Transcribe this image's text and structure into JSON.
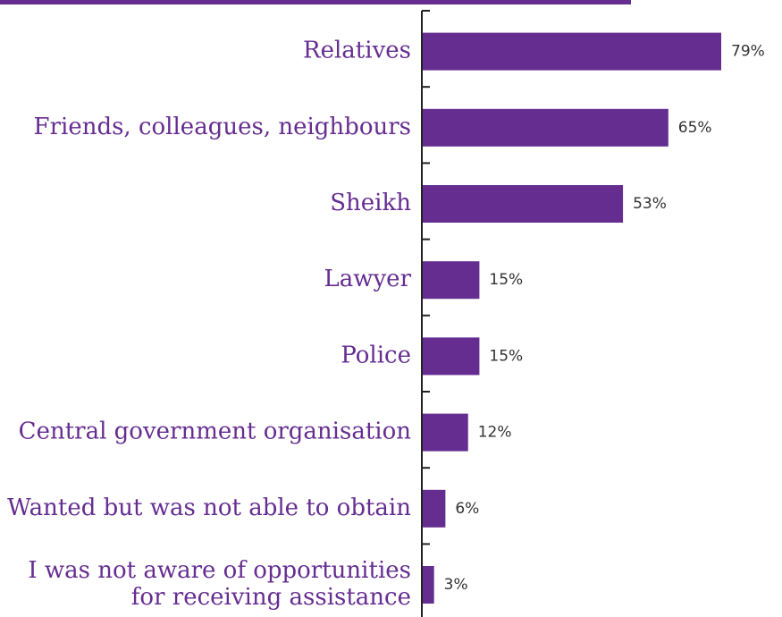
{
  "chart_data": {
    "type": "bar",
    "orientation": "horizontal",
    "title": "",
    "xlabel": "",
    "ylabel": "",
    "categories": [
      [
        "Relatives"
      ],
      [
        "Friends, colleagues, neighbours"
      ],
      [
        "Sheikh"
      ],
      [
        "Lawyer"
      ],
      [
        "Police"
      ],
      [
        "Central government organisation"
      ],
      [
        "Wanted but was not able to obtain"
      ],
      [
        "I was not aware of opportunities",
        "for receiving assistance"
      ]
    ],
    "values": [
      79,
      65,
      53,
      15,
      15,
      12,
      6,
      3
    ],
    "value_labels": [
      "79%",
      "65%",
      "53%",
      "15%",
      "15%",
      "12%",
      "6%",
      "3%"
    ],
    "xlim": [
      0,
      100
    ],
    "grid": false,
    "legend": "none",
    "colors": {
      "bar": "#662d91",
      "label_text": "#662d91",
      "value_text": "#333333",
      "axis": "#222222",
      "top_rule": "#662d91"
    }
  }
}
